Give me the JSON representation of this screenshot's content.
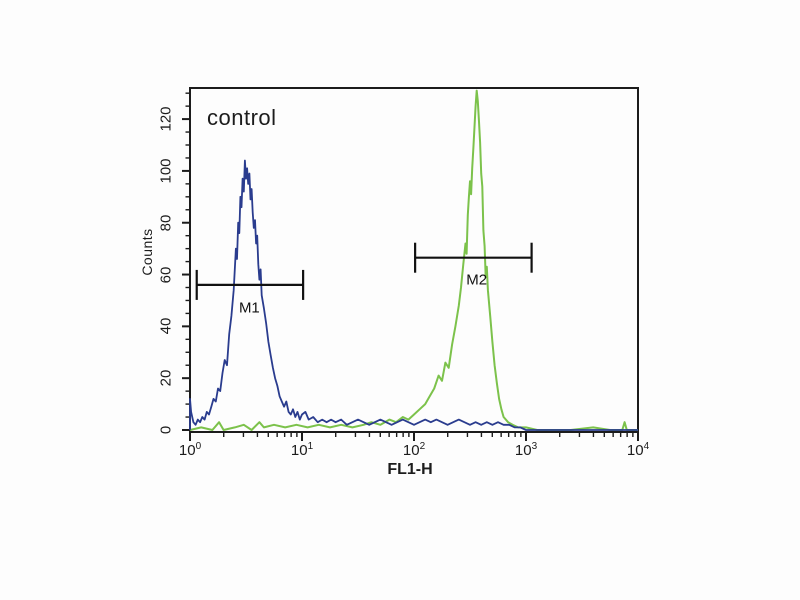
{
  "chart_data": {
    "type": "line",
    "subtype": "flow_cytometry_histogram_overlay",
    "annotation": "control",
    "xlabel": "FL1-H",
    "ylabel": "Counts",
    "x_scale": "log10",
    "xlim_log": [
      0,
      4
    ],
    "x_tick_base": "10",
    "x_tick_exponents": [
      0,
      1,
      2,
      3,
      4
    ],
    "ylim": [
      0,
      132
    ],
    "y_ticks": [
      0,
      20,
      40,
      60,
      80,
      100,
      120
    ],
    "y_minor_step": 5,
    "grid": false,
    "legend": null,
    "colors": {
      "blue_series": "#2a3c8e",
      "green_series": "#7cc24b",
      "frame": "#1c1c1c",
      "text": "#1c1c1c",
      "marker": "#111111"
    },
    "series": [
      {
        "id": "series-green",
        "color": "#7cc24b",
        "points_log_count": [
          [
            0.0,
            0
          ],
          [
            0.1,
            1
          ],
          [
            0.2,
            0
          ],
          [
            0.26,
            3
          ],
          [
            0.3,
            0
          ],
          [
            0.4,
            1
          ],
          [
            0.48,
            2
          ],
          [
            0.55,
            0
          ],
          [
            0.62,
            3
          ],
          [
            0.66,
            1
          ],
          [
            0.75,
            2
          ],
          [
            0.85,
            1
          ],
          [
            0.95,
            2
          ],
          [
            1.05,
            1
          ],
          [
            1.15,
            2
          ],
          [
            1.25,
            1
          ],
          [
            1.35,
            2
          ],
          [
            1.45,
            1
          ],
          [
            1.55,
            2
          ],
          [
            1.62,
            3
          ],
          [
            1.7,
            2
          ],
          [
            1.78,
            4
          ],
          [
            1.84,
            3
          ],
          [
            1.9,
            5
          ],
          [
            1.95,
            4
          ],
          [
            2.0,
            6
          ],
          [
            2.05,
            8
          ],
          [
            2.1,
            10
          ],
          [
            2.14,
            13
          ],
          [
            2.18,
            16
          ],
          [
            2.22,
            21
          ],
          [
            2.25,
            19
          ],
          [
            2.28,
            26
          ],
          [
            2.31,
            24
          ],
          [
            2.34,
            33
          ],
          [
            2.37,
            40
          ],
          [
            2.4,
            48
          ],
          [
            2.42,
            55
          ],
          [
            2.44,
            64
          ],
          [
            2.46,
            72
          ],
          [
            2.47,
            68
          ],
          [
            2.48,
            83
          ],
          [
            2.49,
            90
          ],
          [
            2.5,
            96
          ],
          [
            2.51,
            91
          ],
          [
            2.52,
            101
          ],
          [
            2.53,
            109
          ],
          [
            2.54,
            117
          ],
          [
            2.55,
            125
          ],
          [
            2.56,
            131
          ],
          [
            2.57,
            127
          ],
          [
            2.58,
            119
          ],
          [
            2.59,
            111
          ],
          [
            2.6,
            99
          ],
          [
            2.61,
            94
          ],
          [
            2.62,
            77
          ],
          [
            2.63,
            71
          ],
          [
            2.64,
            59
          ],
          [
            2.65,
            63
          ],
          [
            2.66,
            54
          ],
          [
            2.68,
            44
          ],
          [
            2.7,
            34
          ],
          [
            2.72,
            25
          ],
          [
            2.74,
            18
          ],
          [
            2.76,
            12
          ],
          [
            2.78,
            8
          ],
          [
            2.8,
            5
          ],
          [
            2.84,
            3
          ],
          [
            2.88,
            2
          ],
          [
            2.93,
            1
          ],
          [
            3.0,
            1
          ],
          [
            3.1,
            0
          ],
          [
            3.4,
            0
          ],
          [
            3.6,
            1
          ],
          [
            3.75,
            0
          ],
          [
            3.86,
            0
          ],
          [
            3.88,
            3
          ],
          [
            3.9,
            0
          ],
          [
            4.0,
            0
          ]
        ]
      },
      {
        "id": "series-blue",
        "color": "#2a3c8e",
        "points_log_count": [
          [
            0.0,
            0
          ],
          [
            0.0,
            12
          ],
          [
            0.01,
            7
          ],
          [
            0.03,
            3
          ],
          [
            0.05,
            2
          ],
          [
            0.07,
            4
          ],
          [
            0.09,
            3
          ],
          [
            0.11,
            5
          ],
          [
            0.13,
            4
          ],
          [
            0.15,
            7
          ],
          [
            0.17,
            6
          ],
          [
            0.19,
            9
          ],
          [
            0.21,
            12
          ],
          [
            0.23,
            11
          ],
          [
            0.25,
            16
          ],
          [
            0.27,
            15
          ],
          [
            0.29,
            22
          ],
          [
            0.31,
            27
          ],
          [
            0.33,
            25
          ],
          [
            0.35,
            37
          ],
          [
            0.37,
            44
          ],
          [
            0.39,
            54
          ],
          [
            0.41,
            70
          ],
          [
            0.42,
            66
          ],
          [
            0.43,
            80
          ],
          [
            0.44,
            76
          ],
          [
            0.45,
            90
          ],
          [
            0.46,
            86
          ],
          [
            0.47,
            97
          ],
          [
            0.48,
            92
          ],
          [
            0.49,
            104
          ],
          [
            0.5,
            97
          ],
          [
            0.51,
            101
          ],
          [
            0.52,
            95
          ],
          [
            0.53,
            99
          ],
          [
            0.54,
            89
          ],
          [
            0.55,
            93
          ],
          [
            0.56,
            84
          ],
          [
            0.57,
            78
          ],
          [
            0.58,
            81
          ],
          [
            0.59,
            72
          ],
          [
            0.6,
            75
          ],
          [
            0.61,
            64
          ],
          [
            0.62,
            58
          ],
          [
            0.63,
            62
          ],
          [
            0.64,
            52
          ],
          [
            0.66,
            47
          ],
          [
            0.68,
            41
          ],
          [
            0.7,
            34
          ],
          [
            0.72,
            29
          ],
          [
            0.74,
            24
          ],
          [
            0.76,
            20
          ],
          [
            0.78,
            17
          ],
          [
            0.8,
            13
          ],
          [
            0.82,
            11
          ],
          [
            0.84,
            9
          ],
          [
            0.86,
            11
          ],
          [
            0.88,
            7
          ],
          [
            0.9,
            6
          ],
          [
            0.92,
            8
          ],
          [
            0.94,
            5
          ],
          [
            0.96,
            7
          ],
          [
            0.98,
            4
          ],
          [
            1.0,
            6
          ],
          [
            1.03,
            7
          ],
          [
            1.06,
            4
          ],
          [
            1.1,
            5
          ],
          [
            1.14,
            3
          ],
          [
            1.18,
            4
          ],
          [
            1.22,
            3
          ],
          [
            1.26,
            4
          ],
          [
            1.3,
            3
          ],
          [
            1.35,
            4
          ],
          [
            1.4,
            2
          ],
          [
            1.45,
            3
          ],
          [
            1.5,
            4
          ],
          [
            1.55,
            3
          ],
          [
            1.6,
            2
          ],
          [
            1.65,
            3
          ],
          [
            1.7,
            4
          ],
          [
            1.75,
            3
          ],
          [
            1.8,
            2
          ],
          [
            1.85,
            3
          ],
          [
            1.9,
            4
          ],
          [
            1.95,
            3
          ],
          [
            2.0,
            2
          ],
          [
            2.05,
            3
          ],
          [
            2.1,
            4
          ],
          [
            2.15,
            3
          ],
          [
            2.2,
            4
          ],
          [
            2.25,
            3
          ],
          [
            2.3,
            2
          ],
          [
            2.35,
            3
          ],
          [
            2.4,
            4
          ],
          [
            2.45,
            3
          ],
          [
            2.5,
            2
          ],
          [
            2.55,
            3
          ],
          [
            2.6,
            2
          ],
          [
            2.65,
            3
          ],
          [
            2.7,
            2
          ],
          [
            2.75,
            3
          ],
          [
            2.8,
            2
          ],
          [
            2.85,
            2
          ],
          [
            2.9,
            1
          ],
          [
            2.95,
            1
          ],
          [
            3.0,
            0
          ],
          [
            3.5,
            0
          ],
          [
            4.0,
            0
          ]
        ]
      }
    ],
    "markers": [
      {
        "label": "M1",
        "count_level": 56,
        "log_x1": 0.06,
        "log_x2": 1.01,
        "label_log_x": 0.53,
        "label_count": 47
      },
      {
        "label": "M2",
        "count_level": 66.5,
        "log_x1": 2.01,
        "log_x2": 3.05,
        "label_log_x": 2.56,
        "label_count": 58
      }
    ]
  }
}
